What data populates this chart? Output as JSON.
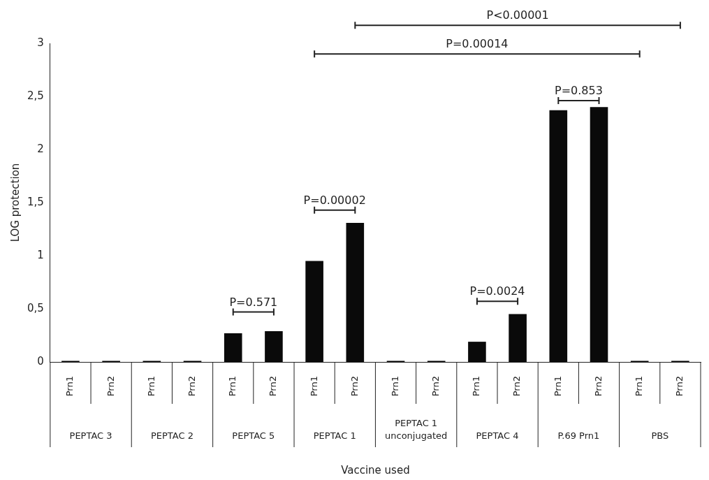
{
  "chart_data": {
    "type": "bar",
    "ylabel": "LOG protection",
    "categories": [
      "Prn1",
      "Prn2",
      "Prn1",
      "Prn2",
      "Prn1",
      "Prn2",
      "Prn1",
      "Prn2",
      "Prn1",
      "Prn2",
      "Prn1",
      "Prn2",
      "Prn1",
      "Prn2",
      "Prn1",
      "Prn2"
    ],
    "values": [
      0.01,
      0.01,
      0.01,
      0.01,
      0.27,
      0.29,
      0.95,
      1.31,
      0.01,
      0.01,
      0.19,
      0.45,
      2.37,
      2.4,
      0.01,
      0.01
    ],
    "color": "#0a0a0a",
    "ylim": [
      0,
      3
    ],
    "yticks": [
      0,
      {
        "value": 0.5,
        "label": "0,5"
      },
      1,
      {
        "value": 1.5,
        "label": "1,5"
      },
      2,
      {
        "value": 2.5,
        "label": "2,5"
      },
      3
    ],
    "annotations": [
      "PEPTAC 3",
      "PEPTAC 2",
      "PEPTAC 5",
      "PEPTAC 1",
      "PEPTAC 1\nunconjugated",
      "PEPTAC 4",
      "P.69 Prn1",
      "PBS",
      "P=0.571",
      "P=0.00002",
      "P=0.0024",
      "P=0.853",
      "P=0.00014",
      "P<0.00001",
      "Vaccine used"
    ],
    "grid": false,
    "legend": false
  }
}
